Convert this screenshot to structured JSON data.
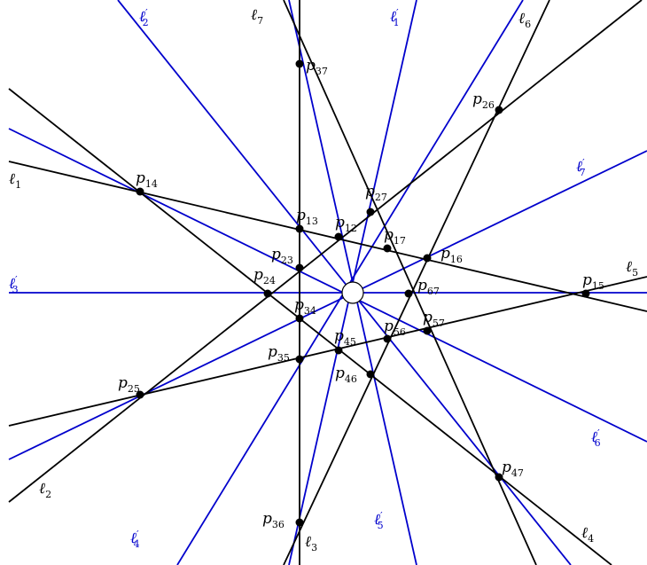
{
  "colors": {
    "black_line": "#000000",
    "blue_line": "#0000cc",
    "point_fill": "#000000",
    "center_fill": "#ffffff"
  },
  "center_point": {
    "id": "O",
    "label": ""
  },
  "black_lines": [
    {
      "id": "l1",
      "letter": "ℓ",
      "sub": "1",
      "prime": ""
    },
    {
      "id": "l2",
      "letter": "ℓ",
      "sub": "2",
      "prime": ""
    },
    {
      "id": "l3",
      "letter": "ℓ",
      "sub": "3",
      "prime": ""
    },
    {
      "id": "l4",
      "letter": "ℓ",
      "sub": "4",
      "prime": ""
    },
    {
      "id": "l5",
      "letter": "ℓ",
      "sub": "5",
      "prime": ""
    },
    {
      "id": "l6",
      "letter": "ℓ",
      "sub": "6",
      "prime": ""
    },
    {
      "id": "l7",
      "letter": "ℓ",
      "sub": "7",
      "prime": ""
    }
  ],
  "blue_lines": [
    {
      "id": "l1p",
      "letter": "ℓ",
      "sub": "1",
      "prime": "′"
    },
    {
      "id": "l2p",
      "letter": "ℓ",
      "sub": "2",
      "prime": "′"
    },
    {
      "id": "l3p",
      "letter": "ℓ",
      "sub": "3",
      "prime": "′"
    },
    {
      "id": "l4p",
      "letter": "ℓ",
      "sub": "4",
      "prime": "′"
    },
    {
      "id": "l5p",
      "letter": "ℓ",
      "sub": "5",
      "prime": "′"
    },
    {
      "id": "l6p",
      "letter": "ℓ",
      "sub": "6",
      "prime": "′"
    },
    {
      "id": "l7p",
      "letter": "ℓ",
      "sub": "7",
      "prime": "′"
    }
  ],
  "points": [
    {
      "id": "p12",
      "letter": "p",
      "sub": "12"
    },
    {
      "id": "p13",
      "letter": "p",
      "sub": "13"
    },
    {
      "id": "p14",
      "letter": "p",
      "sub": "14"
    },
    {
      "id": "p15",
      "letter": "p",
      "sub": "15"
    },
    {
      "id": "p16",
      "letter": "p",
      "sub": "16"
    },
    {
      "id": "p17",
      "letter": "p",
      "sub": "17"
    },
    {
      "id": "p23",
      "letter": "p",
      "sub": "23"
    },
    {
      "id": "p24",
      "letter": "p",
      "sub": "24"
    },
    {
      "id": "p25",
      "letter": "p",
      "sub": "25"
    },
    {
      "id": "p26",
      "letter": "p",
      "sub": "26"
    },
    {
      "id": "p27",
      "letter": "p",
      "sub": "27"
    },
    {
      "id": "p34",
      "letter": "p",
      "sub": "34"
    },
    {
      "id": "p35",
      "letter": "p",
      "sub": "35"
    },
    {
      "id": "p36",
      "letter": "p",
      "sub": "36"
    },
    {
      "id": "p37",
      "letter": "p",
      "sub": "37"
    },
    {
      "id": "p45",
      "letter": "p",
      "sub": "45"
    },
    {
      "id": "p46",
      "letter": "p",
      "sub": "46"
    },
    {
      "id": "p47",
      "letter": "p",
      "sub": "47"
    },
    {
      "id": "p56",
      "letter": "p",
      "sub": "56"
    },
    {
      "id": "p57",
      "letter": "p",
      "sub": "57"
    },
    {
      "id": "p67",
      "letter": "p",
      "sub": "67"
    }
  ]
}
